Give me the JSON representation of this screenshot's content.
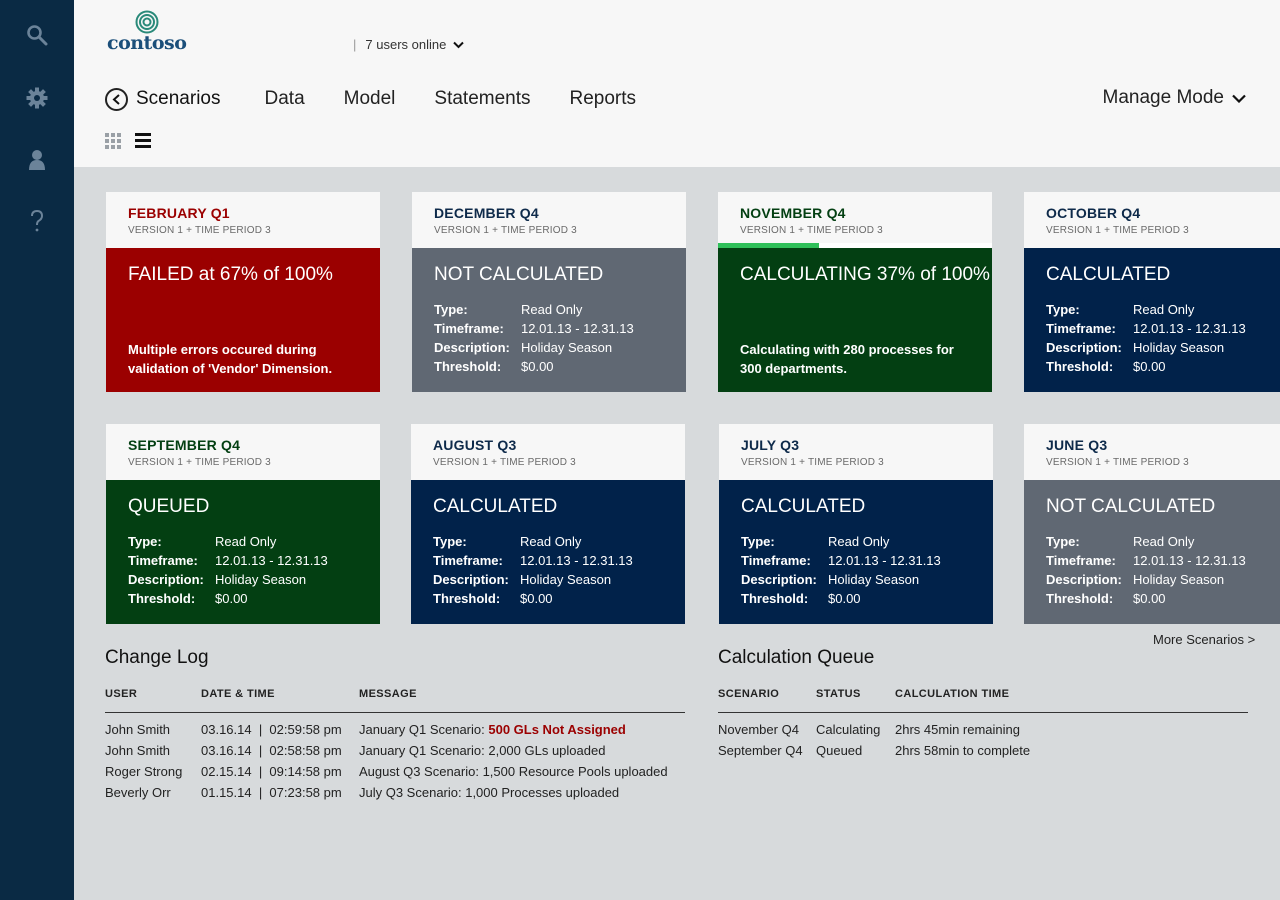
{
  "app": {
    "logo_text": "contoso",
    "users_online": "7 users online"
  },
  "nav": {
    "title": "Scenarios",
    "items": [
      "Data",
      "Model",
      "Statements",
      "Reports"
    ],
    "manage_mode": "Manage Mode"
  },
  "more_scenarios": "More Scenarios >",
  "cards": [
    {
      "theme": "red",
      "title": "FEBRUARY Q1",
      "subtitle": "VERSION 1 + TIME PERIOD 3",
      "status": "FAILED at 67% of 100%",
      "message": "Multiple errors occured during validation of 'Vendor' Dimension."
    },
    {
      "theme": "gray",
      "title": "DECEMBER Q4",
      "subtitle": "VERSION 1 + TIME PERIOD 3",
      "status": "NOT CALCULATED",
      "details": [
        {
          "k": "Type:",
          "v": "Read Only"
        },
        {
          "k": "Timeframe:",
          "v": "12.01.13 - 12.31.13"
        },
        {
          "k": "Description:",
          "v": "Holiday Season"
        },
        {
          "k": "Threshold:",
          "v": "$0.00"
        }
      ]
    },
    {
      "theme": "green",
      "title": "NOVEMBER Q4",
      "subtitle": "VERSION 1 + TIME PERIOD 3",
      "status": "CALCULATING 37% of 100%",
      "progress": 0.37,
      "message": "Calculating with 280 processes for 300 departments."
    },
    {
      "theme": "navy",
      "title": "OCTOBER Q4",
      "subtitle": "VERSION 1 + TIME PERIOD 3",
      "status": "CALCULATED",
      "details": [
        {
          "k": "Type:",
          "v": "Read Only"
        },
        {
          "k": "Timeframe:",
          "v": "12.01.13 - 12.31.13"
        },
        {
          "k": "Description:",
          "v": "Holiday Season"
        },
        {
          "k": "Threshold:",
          "v": "$0.00"
        }
      ]
    },
    {
      "theme": "green",
      "title": "SEPTEMBER Q4",
      "subtitle": "VERSION 1 + TIME PERIOD 3",
      "status": "QUEUED",
      "details": [
        {
          "k": "Type:",
          "v": "Read Only"
        },
        {
          "k": "Timeframe:",
          "v": "12.01.13 - 12.31.13"
        },
        {
          "k": "Description:",
          "v": "Holiday Season"
        },
        {
          "k": "Threshold:",
          "v": "$0.00"
        }
      ]
    },
    {
      "theme": "navy",
      "title": "AUGUST Q3",
      "subtitle": "VERSION 1 + TIME PERIOD 3",
      "status": "CALCULATED",
      "details": [
        {
          "k": "Type:",
          "v": "Read Only"
        },
        {
          "k": "Timeframe:",
          "v": "12.01.13 - 12.31.13"
        },
        {
          "k": "Description:",
          "v": "Holiday Season"
        },
        {
          "k": "Threshold:",
          "v": "$0.00"
        }
      ]
    },
    {
      "theme": "navy",
      "title": "JULY Q3",
      "subtitle": "VERSION 1 + TIME PERIOD 3",
      "status": "CALCULATED",
      "details": [
        {
          "k": "Type:",
          "v": "Read Only"
        },
        {
          "k": "Timeframe:",
          "v": "12.01.13 - 12.31.13"
        },
        {
          "k": "Description:",
          "v": "Holiday Season"
        },
        {
          "k": "Threshold:",
          "v": "$0.00"
        }
      ]
    },
    {
      "theme": "gray",
      "title": "JUNE Q3",
      "subtitle": "VERSION 1 + TIME PERIOD 3",
      "status": "NOT CALCULATED",
      "details": [
        {
          "k": "Type:",
          "v": "Read Only"
        },
        {
          "k": "Timeframe:",
          "v": "12.01.13 - 12.31.13"
        },
        {
          "k": "Description:",
          "v": "Holiday Season"
        },
        {
          "k": "Threshold:",
          "v": "$0.00"
        }
      ]
    }
  ],
  "change_log": {
    "title": "Change Log",
    "headers": [
      "USER",
      "DATE & TIME",
      "MESSAGE"
    ],
    "rows": [
      {
        "user": "John Smith",
        "datetime": "03.16.14  |  02:59:58 pm",
        "message": "January Q1 Scenario: ",
        "highlight": "500 GLs Not Assigned"
      },
      {
        "user": "John Smith",
        "datetime": "03.16.14  |  02:58:58 pm",
        "message": "January Q1 Scenario: 2,000 GLs uploaded",
        "highlight": ""
      },
      {
        "user": "Roger Strong",
        "datetime": "02.15.14  |  09:14:58 pm",
        "message": "August Q3 Scenario: 1,500 Resource Pools uploaded",
        "highlight": ""
      },
      {
        "user": "Beverly Orr",
        "datetime": "01.15.14  |  07:23:58 pm",
        "message": "July Q3 Scenario: 1,000 Processes uploaded",
        "highlight": ""
      }
    ]
  },
  "calc_queue": {
    "title": "Calculation Queue",
    "headers": [
      "SCENARIO",
      "STATUS",
      "CALCULATION TIME"
    ],
    "rows": [
      {
        "scenario": "November Q4",
        "status": "Calculating",
        "time": "2hrs 45min remaining"
      },
      {
        "scenario": "September Q4",
        "status": "Queued",
        "time": "2hrs 58min to complete"
      }
    ]
  }
}
